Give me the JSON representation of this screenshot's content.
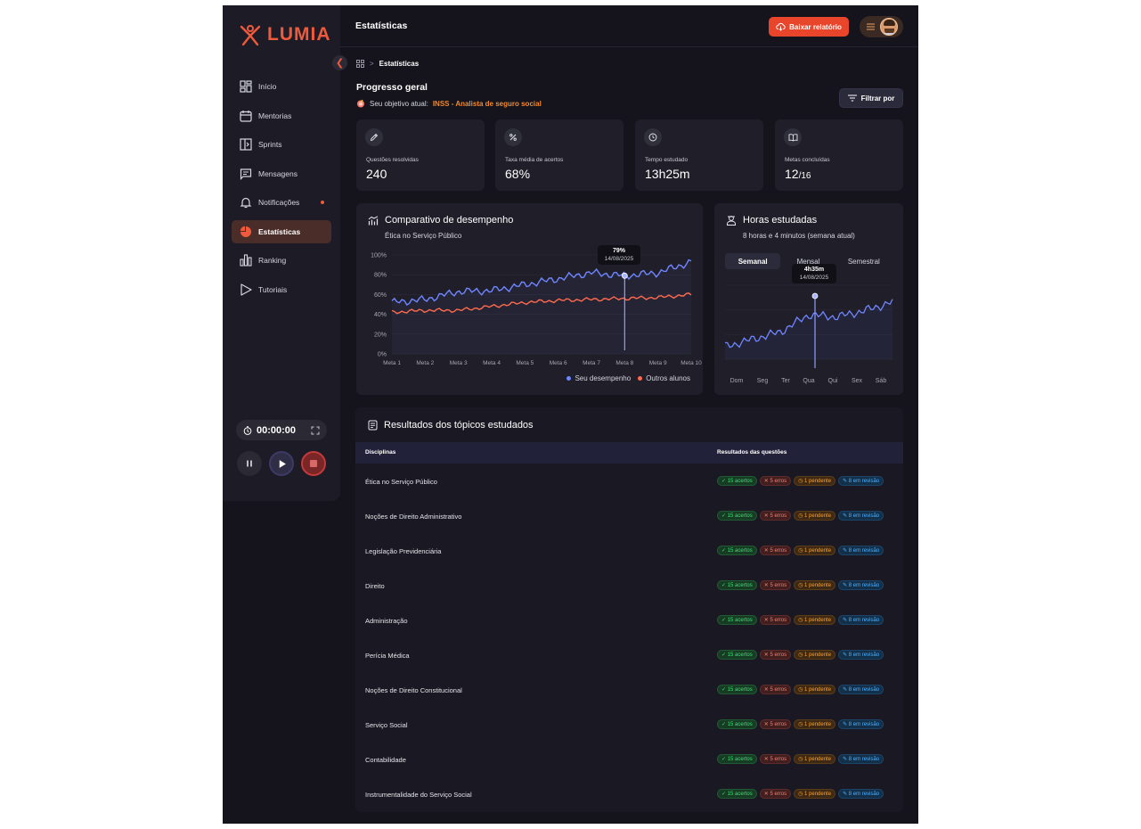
{
  "app": {
    "logo_text": "LUMIA"
  },
  "sidebar": {
    "items": [
      {
        "label": "Início",
        "icon": "grid-icon"
      },
      {
        "label": "Mentorias",
        "icon": "calendar-icon"
      },
      {
        "label": "Sprints",
        "icon": "sprint-icon"
      },
      {
        "label": "Mensagens",
        "icon": "message-icon"
      },
      {
        "label": "Notificações",
        "icon": "bell-icon"
      },
      {
        "label": "Estatísticas",
        "icon": "pie-chart-icon",
        "active": true
      },
      {
        "label": "Ranking",
        "icon": "bar-chart-icon"
      },
      {
        "label": "Tutoriais",
        "icon": "play-outline-icon"
      }
    ],
    "timer": "00:00:00"
  },
  "header": {
    "title": "Estatísticas",
    "download_label": "Baixar relatório"
  },
  "breadcrumb": {
    "current": "Estatísticas"
  },
  "progress": {
    "title": "Progresso geral",
    "goal_label": "Seu objetivo atual:",
    "goal_value": "INSS - Analista de seguro social",
    "filter_label": "Filtrar por"
  },
  "stats": [
    {
      "label": "Questões resolvidas",
      "value": "240",
      "icon": "pencil-icon"
    },
    {
      "label": "Taxa média de acertos",
      "value": "68%",
      "icon": "percent-icon"
    },
    {
      "label": "Tempo estudado",
      "value": "13h25m",
      "icon": "clock-icon"
    },
    {
      "label": "Metas concluídas",
      "value": "12",
      "value_small": "/16",
      "icon": "book-icon"
    }
  ],
  "performance": {
    "title": "Comparativo de desempenho",
    "subtitle": "Ética no Serviço Público",
    "tooltip_value": "79%",
    "tooltip_date": "14/08/2025",
    "legend": [
      "Seu desempenho",
      "Outros alunos"
    ]
  },
  "hours": {
    "title": "Horas estudadas",
    "subtitle": "8 horas e 4 minutos (semana atual)",
    "tabs": [
      "Semanal",
      "Mensal",
      "Semestral"
    ],
    "tooltip_value": "4h35m",
    "tooltip_date": "14/08/2025"
  },
  "chart_data": [
    {
      "type": "line",
      "title": "Comparativo de desempenho",
      "subtitle": "Ética no Serviço Público",
      "categories": [
        "Meta 1",
        "Meta 2",
        "Meta 3",
        "Meta 4",
        "Meta 5",
        "Meta 6",
        "Meta 7",
        "Meta 8",
        "Meta 9",
        "Meta 10"
      ],
      "y_ticks": [
        "0%",
        "20%",
        "40%",
        "60%",
        "80%",
        "100%"
      ],
      "ylim": [
        0,
        100
      ],
      "series": [
        {
          "name": "Seu desempenho",
          "color": "#6f86ff",
          "values": [
            52,
            55,
            63,
            64,
            70,
            76,
            82,
            79,
            82,
            93
          ]
        },
        {
          "name": "Outros alunos",
          "color": "#ff6a4e",
          "values": [
            42,
            44,
            44,
            48,
            52,
            54,
            55,
            56,
            57,
            60
          ]
        }
      ],
      "grid": true,
      "legend": "bottom-right"
    },
    {
      "type": "line",
      "title": "Horas estudadas",
      "categories": [
        "Dom",
        "Seg",
        "Ter",
        "Qua",
        "Qui",
        "Sex",
        "Sáb"
      ],
      "series": [
        {
          "color": "#6f86ff",
          "values": [
            1.2,
            1.9,
            2.6,
            4.2,
            4.0,
            4.6,
            5.4
          ]
        }
      ],
      "grid": true
    }
  ],
  "topics": {
    "title": "Resultados dos tópicos estudados",
    "col_discipline": "Disciplinas",
    "col_results": "Resultados das questões",
    "rows": [
      {
        "name": "Ética no Serviço Público",
        "ok": "15 acertos",
        "err": "5 erros",
        "pend": "1 pendente",
        "rev": "8 em revisão"
      },
      {
        "name": "Noções de Direito Administrativo",
        "ok": "15 acertos",
        "err": "5 erros",
        "pend": "1 pendente",
        "rev": "8 em revisão"
      },
      {
        "name": "Legislação Previdenciária",
        "ok": "15 acertos",
        "err": "5 erros",
        "pend": "1 pendente",
        "rev": "8 em revisão"
      },
      {
        "name": "Direito",
        "ok": "15 acertos",
        "err": "5 erros",
        "pend": "1 pendente",
        "rev": "8 em revisão"
      },
      {
        "name": "Administração",
        "ok": "15 acertos",
        "err": "5 erros",
        "pend": "1 pendente",
        "rev": "8 em revisão"
      },
      {
        "name": "Perícia Médica",
        "ok": "15 acertos",
        "err": "5 erros",
        "pend": "1 pendente",
        "rev": "8 em revisão"
      },
      {
        "name": "Noções de Direito Constitucional",
        "ok": "15 acertos",
        "err": "5 erros",
        "pend": "1 pendente",
        "rev": "8 em revisão"
      },
      {
        "name": "Serviço Social",
        "ok": "15 acertos",
        "err": "5 erros",
        "pend": "1 pendente",
        "rev": "8 em revisão"
      },
      {
        "name": "Contabilidade",
        "ok": "15 acertos",
        "err": "5 erros",
        "pend": "1 pendente",
        "rev": "8 em revisão"
      },
      {
        "name": "Instrumentalidade do Serviço Social",
        "ok": "15 acertos",
        "err": "5 erros",
        "pend": "1 pendente",
        "rev": "8 em revisão"
      }
    ]
  }
}
